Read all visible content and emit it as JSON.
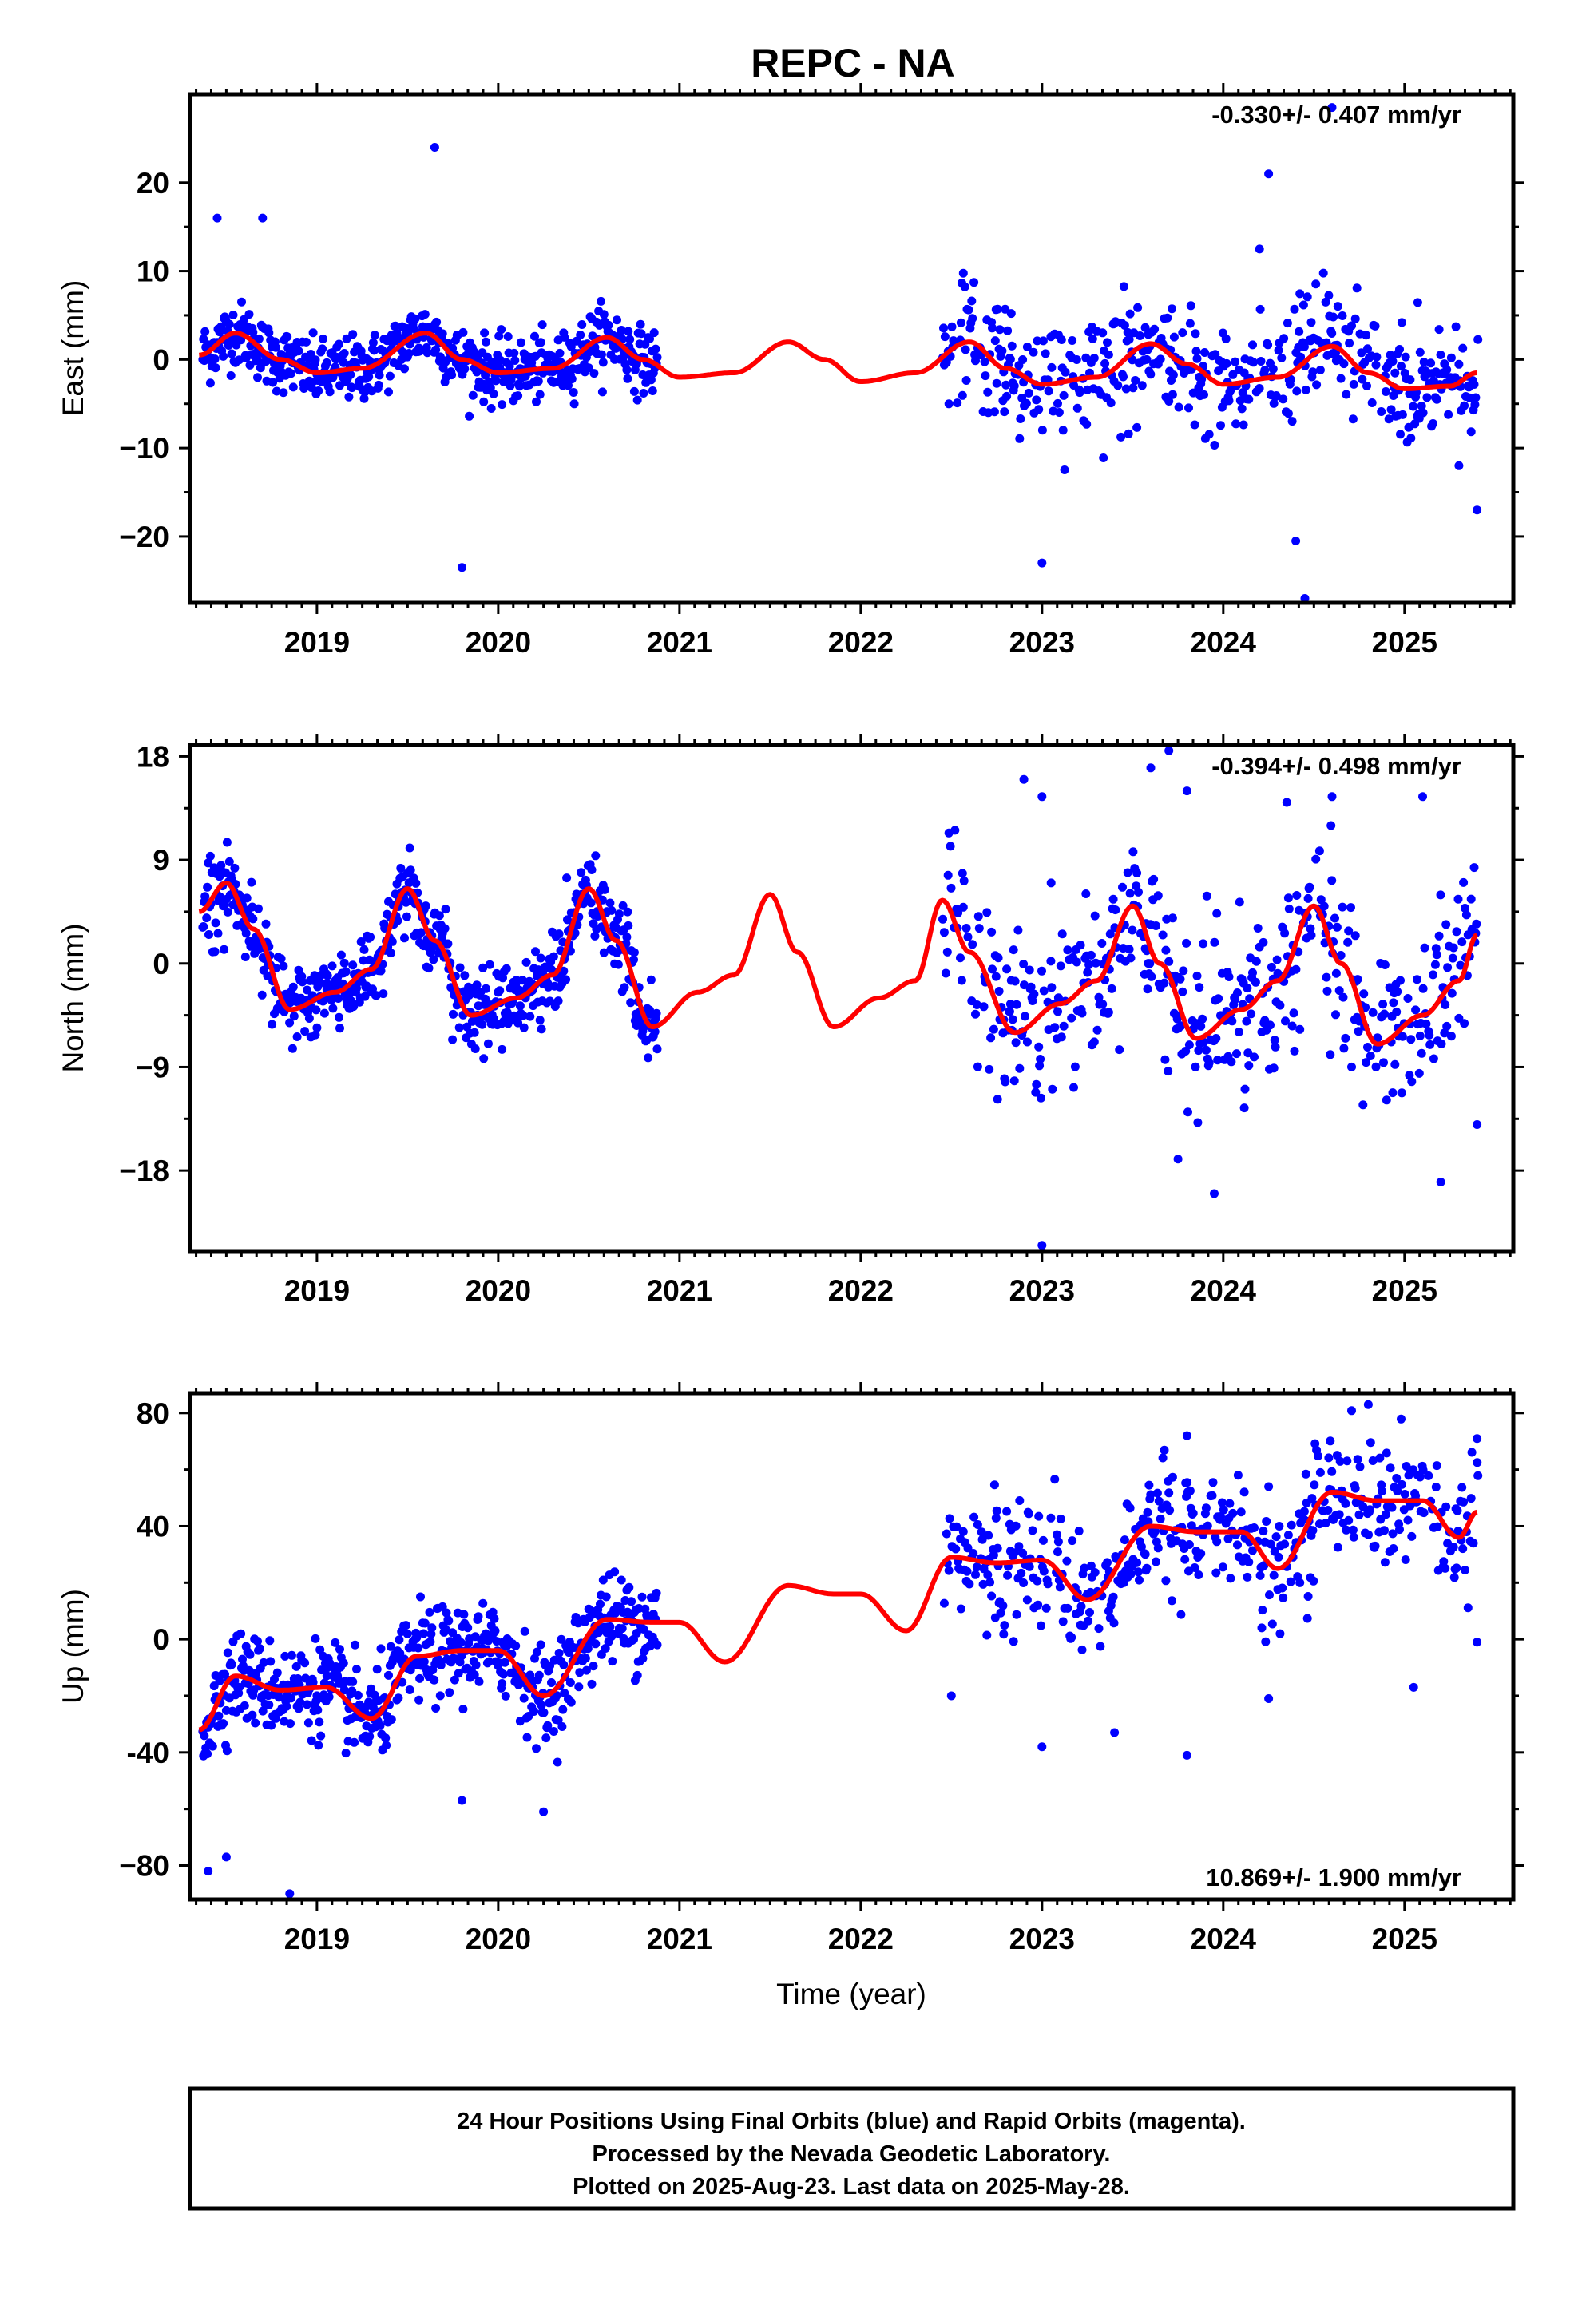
{
  "title": "REPC - NA",
  "xlabel": "Time (year)",
  "footer": [
    "24 Hour Positions Using Final Orbits (blue) and Rapid Orbits (magenta).",
    "Processed by the Nevada Geodetic Laboratory.",
    "Plotted on 2025-Aug-23. Last data on 2025-May-28."
  ],
  "colors": {
    "final_orbits": "#0000ff",
    "rapid_orbits": "#ff00ff",
    "model": "#ff0000"
  },
  "chart_data": [
    {
      "type": "scatter",
      "ylabel": "East (mm)",
      "rate_label": "-0.330+/- 0.407 mm/yr",
      "x_ticks": [
        "2019",
        "2020",
        "2021",
        "2022",
        "2023",
        "2024",
        "2025"
      ],
      "y_ticks": [
        "20",
        "10",
        "0",
        "−10",
        "−20"
      ],
      "y_tick_values": [
        20,
        10,
        0,
        -10,
        -20
      ],
      "xlim": [
        2018.3,
        2025.6
      ],
      "ylim": [
        -27.5,
        30
      ],
      "data_gap": [
        2020.88,
        2022.45
      ],
      "series": [
        {
          "name": "Final Orbits (blue)",
          "style": "points",
          "note": "daily positions"
        },
        {
          "name": "model",
          "style": "line",
          "knots": [
            [
              2018.35,
              0.5
            ],
            [
              2018.55,
              3.0
            ],
            [
              2018.8,
              0
            ],
            [
              2019.0,
              -1.5
            ],
            [
              2019.25,
              -1.0
            ],
            [
              2019.6,
              3.0
            ],
            [
              2019.8,
              0
            ],
            [
              2020.0,
              -1.5
            ],
            [
              2020.3,
              -1.0
            ],
            [
              2020.6,
              2.5
            ],
            [
              2020.8,
              0
            ],
            [
              2021.0,
              -2.0
            ],
            [
              2021.3,
              -1.5
            ],
            [
              2021.6,
              2.0
            ],
            [
              2021.8,
              0
            ],
            [
              2022.0,
              -2.5
            ],
            [
              2022.3,
              -1.5
            ],
            [
              2022.6,
              2.0
            ],
            [
              2022.8,
              -1.0
            ],
            [
              2023.0,
              -2.8
            ],
            [
              2023.3,
              -2.0
            ],
            [
              2023.6,
              1.8
            ],
            [
              2023.8,
              -0.5
            ],
            [
              2024.0,
              -2.8
            ],
            [
              2024.3,
              -2.0
            ],
            [
              2024.6,
              1.5
            ],
            [
              2024.8,
              -1.5
            ],
            [
              2025.0,
              -3.3
            ],
            [
              2025.25,
              -3.0
            ],
            [
              2025.4,
              -1.5
            ]
          ]
        },
        {
          "name": "outliers",
          "style": "points",
          "points": [
            [
              2019.65,
              24
            ],
            [
              2019.8,
              -23.5
            ],
            [
              2024.25,
              21
            ],
            [
              2024.45,
              -27
            ],
            [
              2024.6,
              28.5
            ],
            [
              2024.2,
              12.5
            ],
            [
              2023.0,
              -23
            ],
            [
              2024.4,
              -20.5
            ],
            [
              2025.4,
              -17
            ],
            [
              2018.45,
              16
            ],
            [
              2018.7,
              16
            ],
            [
              2025.3,
              -12
            ]
          ]
        }
      ]
    },
    {
      "type": "scatter",
      "ylabel": "North (mm)",
      "rate_label": "-0.394+/- 0.498 mm/yr",
      "x_ticks": [
        "2019",
        "2020",
        "2021",
        "2022",
        "2023",
        "2024",
        "2025"
      ],
      "y_ticks": [
        "18",
        "9",
        "0",
        "−9",
        "−18"
      ],
      "y_tick_values": [
        18,
        9,
        0,
        -9,
        -18
      ],
      "xlim": [
        2018.3,
        2025.6
      ],
      "ylim": [
        -25,
        19
      ],
      "data_gap": [
        2020.88,
        2022.45
      ],
      "series": [
        {
          "name": "Final Orbits (blue)",
          "style": "points",
          "note": "daily positions"
        },
        {
          "name": "model",
          "style": "line",
          "knots": [
            [
              2018.35,
              4.5
            ],
            [
              2018.5,
              7.0
            ],
            [
              2018.65,
              3.0
            ],
            [
              2018.85,
              -4.0
            ],
            [
              2019.1,
              -2.5
            ],
            [
              2019.3,
              -0.5
            ],
            [
              2019.5,
              6.5
            ],
            [
              2019.65,
              2.0
            ],
            [
              2019.85,
              -4.5
            ],
            [
              2020.1,
              -3.0
            ],
            [
              2020.3,
              -1.0
            ],
            [
              2020.5,
              6.5
            ],
            [
              2020.65,
              2.0
            ],
            [
              2020.85,
              -5.5
            ],
            [
              2021.1,
              -2.5
            ],
            [
              2021.3,
              -1.0
            ],
            [
              2021.5,
              6.0
            ],
            [
              2021.65,
              1.0
            ],
            [
              2021.85,
              -5.5
            ],
            [
              2022.1,
              -3.0
            ],
            [
              2022.3,
              -1.5
            ],
            [
              2022.45,
              5.5
            ],
            [
              2022.6,
              1.0
            ],
            [
              2022.85,
              -6.0
            ],
            [
              2023.1,
              -3.5
            ],
            [
              2023.3,
              -1.5
            ],
            [
              2023.5,
              5.0
            ],
            [
              2023.65,
              0
            ],
            [
              2023.85,
              -6.5
            ],
            [
              2024.1,
              -4.0
            ],
            [
              2024.3,
              -1.5
            ],
            [
              2024.5,
              5.0
            ],
            [
              2024.65,
              0
            ],
            [
              2024.85,
              -7.0
            ],
            [
              2025.1,
              -4.5
            ],
            [
              2025.3,
              -1.5
            ],
            [
              2025.4,
              2.5
            ]
          ]
        },
        {
          "name": "outliers",
          "style": "points",
          "points": [
            [
              2023.0,
              -24.5
            ],
            [
              2023.7,
              18.5
            ],
            [
              2022.9,
              16
            ],
            [
              2023.0,
              14.5
            ],
            [
              2023.95,
              -20
            ],
            [
              2023.75,
              -17
            ],
            [
              2025.2,
              -19
            ],
            [
              2025.4,
              -14
            ],
            [
              2024.6,
              14.5
            ],
            [
              2025.1,
              14.5
            ],
            [
              2023.8,
              15
            ],
            [
              2024.35,
              14
            ],
            [
              2023.05,
              7
            ],
            [
              2023.6,
              17
            ]
          ]
        }
      ]
    },
    {
      "type": "scatter",
      "ylabel": "Up (mm)",
      "rate_label": "10.869+/- 1.900 mm/yr",
      "x_ticks": [
        "2019",
        "2020",
        "2021",
        "2022",
        "2023",
        "2024",
        "2025"
      ],
      "y_ticks": [
        "80",
        "40",
        "0",
        "-40",
        "−80"
      ],
      "y_tick_values": [
        80,
        40,
        0,
        -40,
        -80
      ],
      "xlim": [
        2018.3,
        2025.6
      ],
      "ylim": [
        -92,
        87
      ],
      "data_gap": [
        2020.88,
        2022.45
      ],
      "series": [
        {
          "name": "Final Orbits (blue)",
          "style": "points",
          "note": "daily positions"
        },
        {
          "name": "model",
          "style": "line",
          "knots": [
            [
              2018.35,
              -32
            ],
            [
              2018.55,
              -13
            ],
            [
              2018.8,
              -18
            ],
            [
              2019.05,
              -17
            ],
            [
              2019.3,
              -28
            ],
            [
              2019.55,
              -6
            ],
            [
              2019.8,
              -4
            ],
            [
              2020.0,
              -4
            ],
            [
              2020.25,
              -20
            ],
            [
              2020.6,
              7
            ],
            [
              2020.85,
              6
            ],
            [
              2021.0,
              6
            ],
            [
              2021.25,
              -8
            ],
            [
              2021.6,
              19
            ],
            [
              2021.85,
              16
            ],
            [
              2022.0,
              16
            ],
            [
              2022.25,
              3
            ],
            [
              2022.5,
              29
            ],
            [
              2022.75,
              27
            ],
            [
              2023.0,
              28
            ],
            [
              2023.25,
              14
            ],
            [
              2023.6,
              40
            ],
            [
              2023.85,
              38
            ],
            [
              2024.1,
              38
            ],
            [
              2024.3,
              25
            ],
            [
              2024.6,
              52
            ],
            [
              2024.85,
              49
            ],
            [
              2025.1,
              49
            ],
            [
              2025.3,
              36
            ],
            [
              2025.4,
              45
            ]
          ]
        },
        {
          "name": "outliers",
          "style": "points",
          "points": [
            [
              2018.4,
              -82
            ],
            [
              2018.5,
              -77
            ],
            [
              2018.85,
              -90
            ],
            [
              2024.8,
              83
            ],
            [
              2023.8,
              72
            ],
            [
              2023.8,
              -41
            ],
            [
              2020.25,
              -61
            ],
            [
              2019.8,
              -57
            ],
            [
              2024.25,
              -21
            ],
            [
              2025.05,
              -17
            ],
            [
              2025.4,
              -1
            ],
            [
              2025.4,
              71
            ],
            [
              2022.5,
              -20
            ],
            [
              2023.0,
              -38
            ],
            [
              2023.4,
              -33
            ]
          ]
        }
      ]
    }
  ]
}
